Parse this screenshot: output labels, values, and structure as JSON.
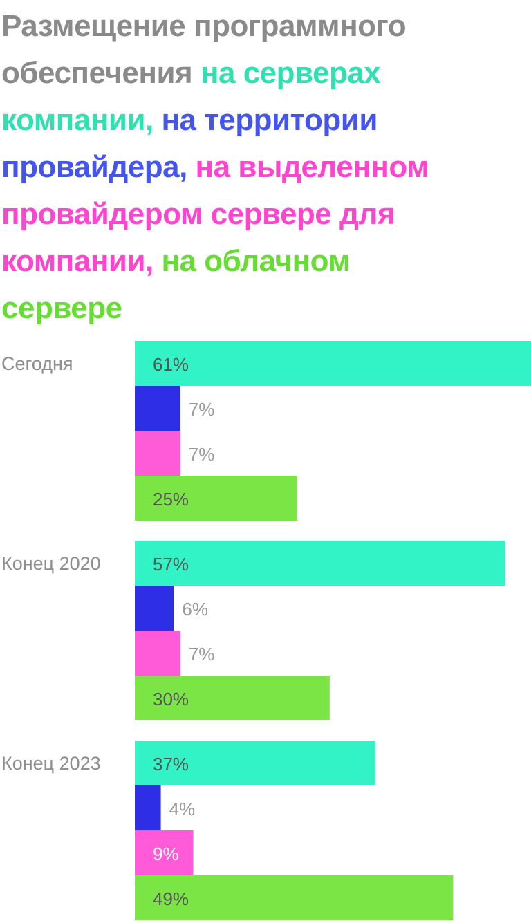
{
  "title_segments": [
    {
      "text": "Размещение программного обеспечения",
      "color": "#8a8a8a"
    },
    {
      "text": "на серверах компании,",
      "color": "#2fe0b0"
    },
    {
      "text": "на территории провайдера,",
      "color": "#4455ee"
    },
    {
      "text": "на выделенном провайдером сервере для компании,",
      "color": "#ff44d0"
    },
    {
      "text": "на облачном сервере",
      "color": "#66dd33"
    }
  ],
  "chart_data": {
    "type": "bar",
    "orientation": "horizontal",
    "title": "Размещение программного обеспечения на серверах компании, на территории провайдера, на выделенном провайдером сервере для компании, на облачном сервере",
    "xlabel": "",
    "ylabel": "",
    "xlim": [
      0,
      61
    ],
    "unit": "%",
    "grid": false,
    "categories": [
      "Сегодня",
      "Конец 2020",
      "Конец 2023"
    ],
    "series": [
      {
        "name": "на серверах компании",
        "color": "#31f3c5",
        "values": [
          61,
          57,
          37
        ]
      },
      {
        "name": "на территории провайдера",
        "color": "#2e2ee6",
        "values": [
          7,
          6,
          4
        ]
      },
      {
        "name": "на выделенном провайдером сервере для компании",
        "color": "#ff5bd9",
        "values": [
          7,
          7,
          9
        ]
      },
      {
        "name": "на облачном сервере",
        "color": "#7ae545",
        "values": [
          25,
          30,
          49
        ]
      }
    ],
    "labels": [
      [
        "61%",
        "7%",
        "7%",
        "25%"
      ],
      [
        "57%",
        "6%",
        "7%",
        "30%"
      ],
      [
        "37%",
        "4%",
        "9%",
        "49%"
      ]
    ]
  }
}
